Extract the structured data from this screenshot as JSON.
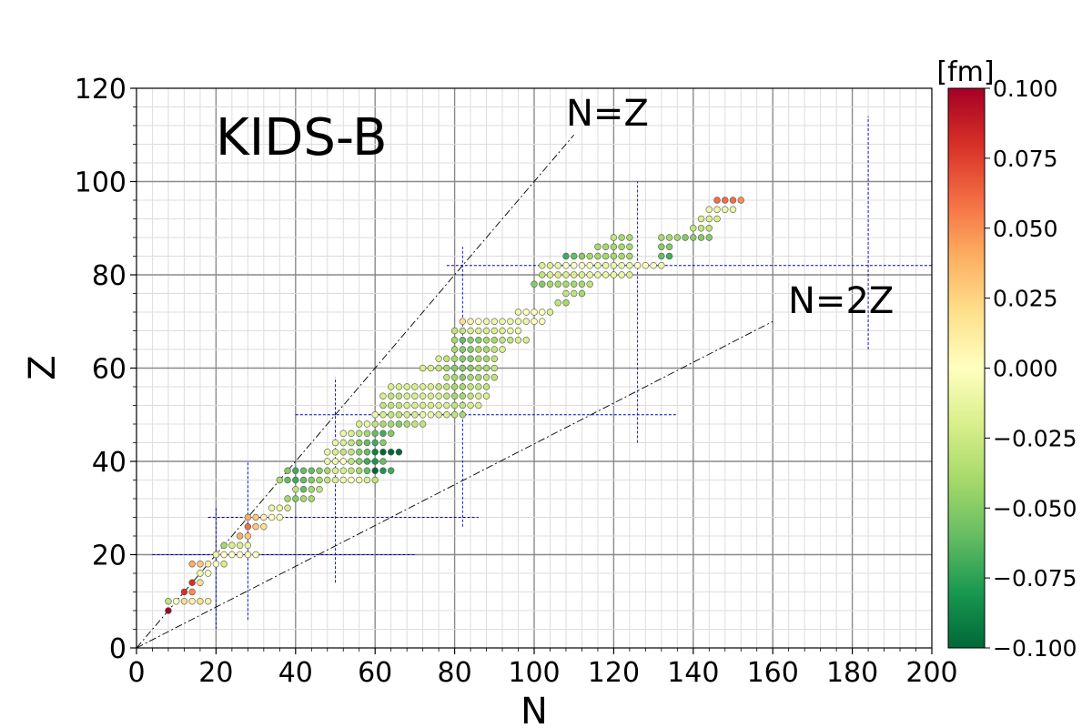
{
  "chart_data": {
    "type": "scatter",
    "title": "KIDS-B",
    "xlabel": "N",
    "ylabel": "Z",
    "xlim": [
      0,
      200
    ],
    "ylim": [
      0,
      120
    ],
    "x_ticks": [
      "0",
      "20",
      "40",
      "60",
      "80",
      "100",
      "120",
      "140",
      "160",
      "180",
      "200"
    ],
    "y_ticks": [
      "0",
      "20",
      "40",
      "60",
      "80",
      "100",
      "120"
    ],
    "grid": "major and minor",
    "colorbar": {
      "label": "[fm]",
      "min": -0.1,
      "max": 0.1,
      "ticks": [
        "0.100",
        "0.075",
        "0.050",
        "0.025",
        "0.000",
        "−0.025",
        "−0.050",
        "−0.075",
        "−0.100"
      ],
      "colormap": "RdYlGn_r",
      "colors": [
        "#006837",
        "#1a9850",
        "#66bd63",
        "#a6d96a",
        "#d9ef8b",
        "#ffffbf",
        "#fee08b",
        "#fdae61",
        "#f46d43",
        "#d73027",
        "#a50026"
      ]
    },
    "reference_lines": [
      {
        "label": "N=Z",
        "points": [
          [
            0,
            0
          ],
          [
            110,
            110
          ]
        ]
      },
      {
        "label": "N=2Z",
        "points": [
          [
            0,
            0
          ],
          [
            160,
            70
          ]
        ]
      }
    ],
    "magic_lines": {
      "color": "#0000cc",
      "vertical": [
        {
          "N": 20,
          "z_from": 4,
          "z_to": 30
        },
        {
          "N": 28,
          "z_from": 6,
          "z_to": 40
        },
        {
          "N": 50,
          "z_from": 14,
          "z_to": 58
        },
        {
          "N": 82,
          "z_from": 26,
          "z_to": 86
        },
        {
          "N": 126,
          "z_from": 44,
          "z_to": 100
        },
        {
          "N": 184,
          "z_from": 64,
          "z_to": 114
        }
      ],
      "horizontal": [
        {
          "Z": 20,
          "n_from": 4,
          "n_to": 70
        },
        {
          "Z": 28,
          "n_from": 18,
          "n_to": 86
        },
        {
          "Z": 50,
          "n_from": 40,
          "n_to": 136
        },
        {
          "Z": 82,
          "n_from": 78,
          "n_to": 200
        }
      ]
    },
    "groups": [
      {
        "Z": 8,
        "N": [
          8
        ],
        "v": [
          0.1
        ]
      },
      {
        "Z": 10,
        "N": [
          8,
          10,
          12,
          14,
          16,
          18
        ],
        "v": [
          -0.03,
          0.0,
          0.02,
          0.01,
          0.02,
          0.01
        ]
      },
      {
        "Z": 12,
        "N": [
          12,
          14
        ],
        "v": [
          0.08,
          0.05
        ]
      },
      {
        "Z": 14,
        "N": [
          14,
          16
        ],
        "v": [
          0.08,
          0.02
        ]
      },
      {
        "Z": 16,
        "N": [
          16,
          18
        ],
        "v": [
          -0.01,
          0.0
        ]
      },
      {
        "Z": 18,
        "N": [
          14,
          16,
          18,
          20,
          22
        ],
        "v": [
          0.04,
          0.03,
          0.01,
          0.0,
          -0.02
        ]
      },
      {
        "Z": 20,
        "N": [
          20,
          22,
          24,
          26,
          28,
          30
        ],
        "v": [
          -0.01,
          0.0,
          0.0,
          0.0,
          0.0,
          0.0
        ]
      },
      {
        "Z": 22,
        "N": [
          22,
          24,
          26,
          28
        ],
        "v": [
          -0.04,
          -0.02,
          -0.02,
          -0.01
        ]
      },
      {
        "Z": 24,
        "N": [
          26,
          28
        ],
        "v": [
          0.04,
          0.03
        ]
      },
      {
        "Z": 26,
        "N": [
          28,
          30,
          32
        ],
        "v": [
          0.06,
          0.03,
          0.02
        ]
      },
      {
        "Z": 28,
        "N": [
          28,
          30,
          32,
          34,
          36
        ],
        "v": [
          0.04,
          0.03,
          0.01,
          0.0,
          0.0
        ]
      },
      {
        "Z": 30,
        "N": [
          34,
          36,
          38
        ],
        "v": [
          -0.01,
          -0.01,
          -0.02
        ]
      },
      {
        "Z": 32,
        "N": [
          38,
          40,
          42,
          44
        ],
        "v": [
          -0.04,
          -0.05,
          -0.04,
          -0.04
        ]
      },
      {
        "Z": 34,
        "N": [
          40,
          42,
          44,
          46
        ],
        "v": [
          -0.03,
          -0.06,
          -0.04,
          -0.03
        ]
      },
      {
        "Z": 36,
        "N": [
          36,
          38,
          40,
          42,
          44,
          46,
          48,
          50,
          52,
          54,
          56,
          58,
          60
        ],
        "v": [
          -0.04,
          -0.06,
          -0.07,
          -0.06,
          -0.05,
          -0.04,
          -0.03,
          -0.02,
          -0.01,
          0.0,
          -0.01,
          -0.02,
          -0.03
        ]
      },
      {
        "Z": 38,
        "N": [
          38,
          40,
          42,
          44,
          46,
          48,
          50,
          52,
          54,
          56,
          58,
          60,
          62,
          64
        ],
        "v": [
          -0.05,
          -0.07,
          -0.06,
          -0.06,
          -0.05,
          -0.04,
          -0.02,
          -0.02,
          -0.03,
          -0.04,
          -0.06,
          -0.1,
          -0.08,
          -0.07
        ]
      },
      {
        "Z": 40,
        "N": [
          48,
          50,
          52,
          54,
          56,
          58,
          60,
          62
        ],
        "v": [
          -0.01,
          -0.01,
          0.0,
          -0.03,
          -0.05,
          -0.07,
          -0.08,
          -0.06
        ]
      },
      {
        "Z": 42,
        "N": [
          48,
          50,
          52,
          54,
          56,
          58,
          60,
          62,
          64,
          66
        ],
        "v": [
          -0.01,
          -0.02,
          -0.03,
          -0.03,
          -0.05,
          -0.06,
          -0.09,
          -0.1,
          -0.1,
          -0.1
        ]
      },
      {
        "Z": 44,
        "N": [
          50,
          52,
          54,
          56,
          58,
          60,
          62
        ],
        "v": [
          -0.01,
          -0.02,
          -0.03,
          -0.05,
          -0.06,
          -0.07,
          -0.05
        ]
      },
      {
        "Z": 46,
        "N": [
          52,
          54,
          56,
          58,
          60,
          62,
          64
        ],
        "v": [
          -0.01,
          -0.02,
          -0.03,
          -0.04,
          -0.06,
          -0.07,
          -0.05
        ]
      },
      {
        "Z": 48,
        "N": [
          56,
          58,
          60,
          62,
          64,
          66,
          68,
          70,
          72
        ],
        "v": [
          -0.02,
          -0.01,
          -0.03,
          -0.04,
          -0.04,
          -0.05,
          -0.04,
          -0.03,
          -0.03
        ]
      },
      {
        "Z": 50,
        "N": [
          60,
          62,
          64,
          66,
          68,
          70,
          72,
          74,
          76,
          78,
          80,
          82
        ],
        "v": [
          -0.01,
          -0.02,
          -0.03,
          -0.03,
          -0.02,
          -0.02,
          -0.01,
          -0.01,
          -0.02,
          -0.02,
          -0.03,
          -0.04
        ]
      },
      {
        "Z": 52,
        "N": [
          62,
          64,
          66,
          68,
          70,
          72,
          74,
          76,
          78,
          80,
          82,
          84,
          86
        ],
        "v": [
          -0.03,
          -0.03,
          -0.03,
          -0.02,
          -0.02,
          -0.02,
          -0.02,
          -0.02,
          -0.02,
          -0.03,
          -0.03,
          -0.02,
          -0.02
        ]
      },
      {
        "Z": 54,
        "N": [
          62,
          64,
          66,
          68,
          70,
          72,
          74,
          76,
          78,
          80,
          82,
          84,
          86,
          88
        ],
        "v": [
          -0.02,
          -0.03,
          -0.03,
          -0.02,
          -0.02,
          -0.02,
          -0.02,
          -0.02,
          -0.03,
          -0.04,
          -0.04,
          -0.03,
          -0.02,
          -0.02
        ]
      },
      {
        "Z": 56,
        "N": [
          64,
          66,
          68,
          70,
          72,
          74,
          76,
          78,
          80,
          82,
          84,
          86,
          88
        ],
        "v": [
          -0.02,
          -0.02,
          -0.02,
          -0.02,
          -0.02,
          -0.02,
          -0.03,
          -0.03,
          -0.04,
          -0.04,
          -0.03,
          -0.03,
          -0.03
        ]
      },
      {
        "Z": 58,
        "N": [
          78,
          80,
          82,
          84,
          86,
          88,
          90
        ],
        "v": [
          -0.03,
          -0.04,
          -0.05,
          -0.04,
          -0.04,
          -0.03,
          -0.03
        ]
      },
      {
        "Z": 60,
        "N": [
          72,
          74,
          76,
          78,
          80,
          82,
          84,
          86,
          88,
          90
        ],
        "v": [
          -0.02,
          -0.02,
          -0.03,
          -0.04,
          -0.05,
          -0.05,
          -0.05,
          -0.04,
          -0.04,
          -0.03
        ]
      },
      {
        "Z": 62,
        "N": [
          76,
          78,
          80,
          82,
          84,
          86,
          88,
          90
        ],
        "v": [
          -0.02,
          -0.03,
          -0.04,
          -0.05,
          -0.05,
          -0.04,
          -0.04,
          -0.03
        ]
      },
      {
        "Z": 64,
        "N": [
          80,
          82,
          84,
          86,
          88,
          90,
          92
        ],
        "v": [
          -0.04,
          -0.05,
          -0.05,
          -0.04,
          -0.04,
          -0.03,
          -0.02
        ]
      },
      {
        "Z": 66,
        "N": [
          80,
          82,
          84,
          86,
          88,
          90,
          92,
          94,
          96,
          98
        ],
        "v": [
          -0.04,
          -0.06,
          -0.05,
          -0.05,
          -0.04,
          -0.04,
          -0.03,
          -0.03,
          -0.02,
          -0.02
        ]
      },
      {
        "Z": 68,
        "N": [
          80,
          82,
          84,
          86,
          88,
          90,
          92,
          94,
          96
        ],
        "v": [
          -0.03,
          -0.03,
          -0.02,
          -0.02,
          -0.02,
          -0.02,
          -0.02,
          -0.01,
          -0.01
        ]
      },
      {
        "Z": 70,
        "N": [
          82,
          84,
          86,
          88,
          90,
          92,
          94,
          96,
          98,
          100,
          102
        ],
        "v": [
          0.02,
          0.01,
          0.0,
          -0.01,
          -0.01,
          -0.01,
          -0.01,
          -0.01,
          -0.01,
          0.0,
          0.0
        ]
      },
      {
        "Z": 72,
        "N": [
          96,
          98,
          100,
          102,
          104
        ],
        "v": [
          -0.01,
          0.0,
          0.0,
          0.0,
          -0.02
        ]
      },
      {
        "Z": 74,
        "N": [
          106,
          108
        ],
        "v": [
          -0.03,
          -0.04
        ]
      },
      {
        "Z": 76,
        "N": [
          108,
          110,
          112
        ],
        "v": [
          -0.03,
          -0.03,
          -0.04
        ]
      },
      {
        "Z": 78,
        "N": [
          100,
          102,
          104,
          106,
          108,
          110,
          112,
          114
        ],
        "v": [
          -0.05,
          -0.05,
          -0.04,
          -0.04,
          -0.04,
          -0.04,
          -0.04,
          -0.03
        ]
      },
      {
        "Z": 80,
        "N": [
          102,
          104,
          106,
          108,
          110,
          112,
          114,
          116,
          118,
          120,
          122,
          124
        ],
        "v": [
          -0.03,
          -0.02,
          -0.02,
          -0.02,
          -0.02,
          -0.02,
          -0.01,
          -0.01,
          -0.01,
          -0.01,
          -0.01,
          -0.02
        ]
      },
      {
        "Z": 82,
        "N": [
          102,
          104,
          106,
          108,
          110,
          112,
          114,
          116,
          118,
          120,
          122,
          124,
          126,
          128,
          130,
          132
        ],
        "v": [
          -0.02,
          -0.02,
          -0.01,
          0.0,
          0.0,
          0.0,
          0.0,
          -0.01,
          -0.01,
          -0.01,
          -0.01,
          -0.01,
          0.0,
          0.0,
          0.0,
          -0.01
        ]
      },
      {
        "Z": 84,
        "N": [
          108,
          110,
          112,
          114,
          116,
          118,
          120,
          122,
          124,
          132,
          134
        ],
        "v": [
          -0.07,
          -0.06,
          -0.05,
          -0.04,
          -0.04,
          -0.04,
          -0.04,
          -0.04,
          -0.04,
          -0.06,
          -0.07
        ]
      },
      {
        "Z": 86,
        "N": [
          116,
          118,
          120,
          122,
          124,
          132,
          134
        ],
        "v": [
          -0.04,
          -0.04,
          -0.04,
          -0.04,
          -0.04,
          -0.05,
          -0.05
        ]
      },
      {
        "Z": 88,
        "N": [
          120,
          122,
          124,
          132,
          134,
          136,
          138,
          140,
          142,
          144
        ],
        "v": [
          -0.03,
          -0.04,
          -0.04,
          -0.04,
          -0.04,
          -0.04,
          -0.05,
          -0.05,
          -0.05,
          -0.05
        ]
      },
      {
        "Z": 90,
        "N": [
          140,
          142,
          144
        ],
        "v": [
          -0.03,
          -0.03,
          -0.03
        ]
      },
      {
        "Z": 92,
        "N": [
          142,
          144,
          146
        ],
        "v": [
          -0.02,
          -0.02,
          -0.02
        ]
      },
      {
        "Z": 94,
        "N": [
          144,
          146,
          148,
          150
        ],
        "v": [
          -0.01,
          -0.01,
          -0.01,
          -0.01
        ]
      },
      {
        "Z": 96,
        "N": [
          146,
          148,
          150,
          152
        ],
        "v": [
          0.06,
          0.06,
          0.06,
          0.05
        ]
      }
    ]
  }
}
